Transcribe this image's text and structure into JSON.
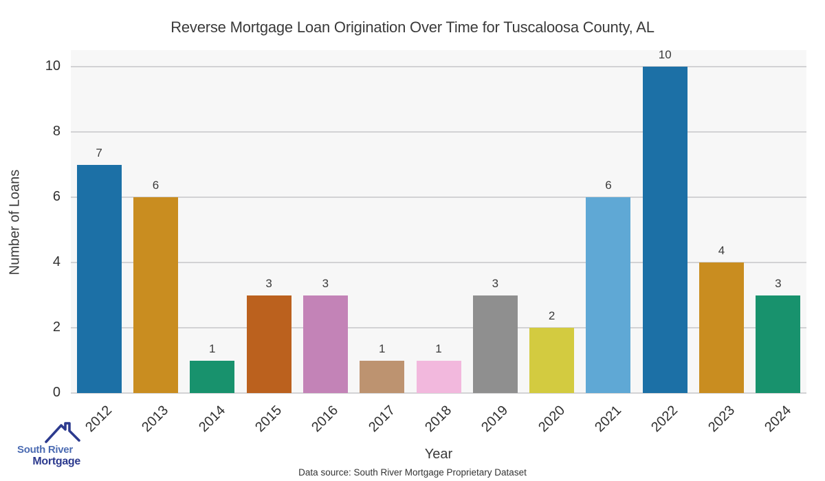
{
  "title": "Reverse Mortgage Loan Origination Over Time for Tuscaloosa County, AL",
  "chart_data": {
    "type": "bar",
    "categories": [
      "2012",
      "2013",
      "2014",
      "2015",
      "2016",
      "2017",
      "2018",
      "2019",
      "2020",
      "2021",
      "2022",
      "2023",
      "2024"
    ],
    "values": [
      7,
      6,
      1,
      3,
      3,
      1,
      1,
      3,
      2,
      6,
      10,
      4,
      3
    ],
    "bar_colors": [
      "#1c70a6",
      "#c98d20",
      "#18926d",
      "#bb611e",
      "#c383b7",
      "#bd9370",
      "#f2b8dd",
      "#8f8f8f",
      "#d3cb40",
      "#5fa8d5",
      "#1c70a6",
      "#c98d20",
      "#18926d"
    ],
    "title": "Reverse Mortgage Loan Origination Over Time for Tuscaloosa County, AL",
    "xlabel": "Year",
    "ylabel": "Number of Loans",
    "ylim": [
      0,
      10.5
    ],
    "yticks": [
      0,
      2,
      4,
      6,
      8,
      10
    ],
    "grid": "horizontal-only",
    "gridline_color": "#d2d2d4",
    "plot_background": "#f7f7f7",
    "value_labels_shown": true,
    "legend": "none",
    "x_tick_rotation_deg": 45
  },
  "footer": {
    "source": "Data source: South River Mortgage Proprietary Dataset"
  },
  "logo": {
    "line1": "South River",
    "line2": "Mortgage",
    "line1_color": "#4b6bb2",
    "line2_color": "#2c3a8e",
    "roof_color": "#2c3a8e"
  }
}
